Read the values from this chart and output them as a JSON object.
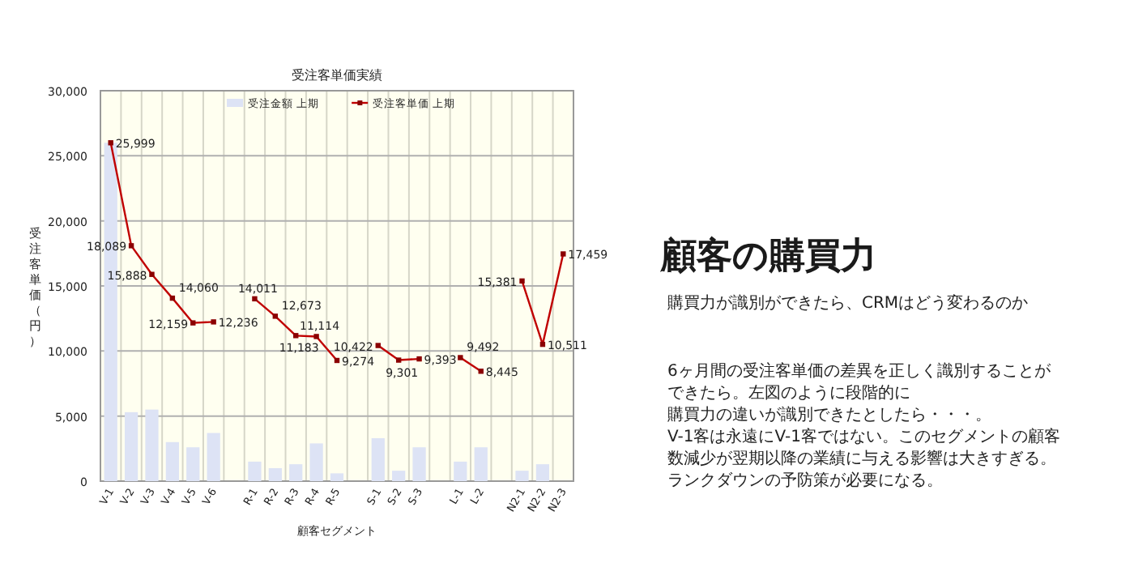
{
  "chart_data": [
    {
      "type": "bar",
      "title": "受注客単価実績",
      "xlabel": "顧客セグメント",
      "ylabel": "受注客単価（円）",
      "categories": [
        "V-1",
        "V-2",
        "V-3",
        "V-4",
        "V-5",
        "V-6",
        null,
        "R-1",
        "R-2",
        "R-3",
        "R-4",
        "R-5",
        null,
        "S-1",
        "S-2",
        "S-3",
        null,
        "L-1",
        "L-2",
        null,
        "N2-1",
        "N2-2",
        "N2-3"
      ],
      "series": [
        {
          "name": "受注金額 上期",
          "type": "bar",
          "color": "#dde3f5",
          "values": [
            26000,
            5300,
            5500,
            3000,
            2600,
            3700,
            null,
            1500,
            1000,
            1300,
            2900,
            600,
            null,
            3300,
            800,
            2600,
            null,
            1500,
            2600,
            null,
            800,
            1300,
            0
          ]
        },
        {
          "name": "受注客単価 上期",
          "type": "line",
          "color": "#c00000",
          "marker": "square",
          "values": [
            25999,
            18089,
            15888,
            14060,
            12159,
            12236,
            null,
            14011,
            12673,
            11183,
            11114,
            9274,
            null,
            10422,
            9301,
            9393,
            null,
            9492,
            8445,
            null,
            15381,
            10511,
            17459
          ],
          "value_labels": [
            "25,999",
            "18,089",
            "15,888",
            "14,060",
            "12,159",
            "12,236",
            null,
            "14,011",
            "12,673",
            "11,183",
            "11,114",
            "9,274",
            null,
            "10,422",
            "9,301",
            "9,393",
            null,
            "9,492",
            "8,445",
            null,
            "15,381",
            "10,511",
            "17,459"
          ]
        }
      ],
      "ylim": [
        0,
        30000
      ],
      "yticks": [
        {
          "value": 0,
          "label": "0"
        },
        {
          "value": 5000,
          "label": "5,000"
        },
        {
          "value": 10000,
          "label": "10,000"
        },
        {
          "value": 15000,
          "label": "15,000"
        },
        {
          "value": 20000,
          "label": "20,000"
        },
        {
          "value": 25000,
          "label": "25,000"
        },
        {
          "value": 30000,
          "label": "30,000"
        }
      ],
      "grid": true,
      "legend": "top"
    },
    {
      "type": "other",
      "title": "顧客の購買力",
      "subtitle": "購買力が識別ができたら、CRMはどう変わるのか",
      "annotations": [
        "6ヶ月間の受注客単価の差異を正しく識別することが",
        "できたら。左図のように段階的に",
        "購買力の違いが識別できたとしたら・・・。",
        "V-1客は永遠にV-1客ではない。このセグメントの顧客",
        "数減少が翌期以降の業績に与える影響は大きすぎる。",
        "ランクダウンの予防策が必要になる。"
      ]
    }
  ]
}
